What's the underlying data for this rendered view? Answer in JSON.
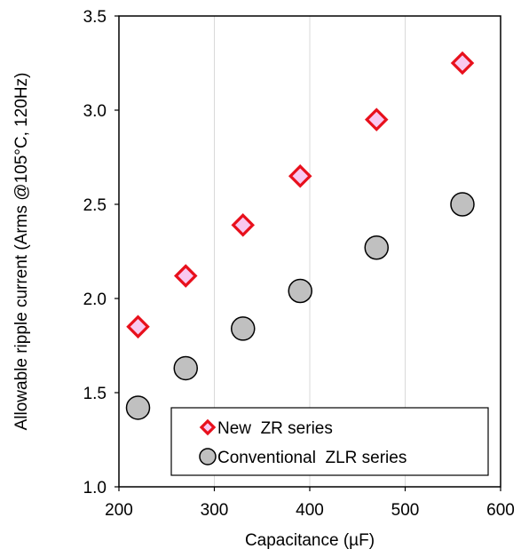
{
  "chart_data": {
    "type": "scatter",
    "xlabel": "Capacitance (µF)",
    "ylabel": "Allowable ripple current (Arms @105°C, 120Hz)",
    "xlim": [
      200,
      600
    ],
    "ylim": [
      1.0,
      3.5
    ],
    "x_ticks": [
      "200",
      "300",
      "400",
      "500",
      "600"
    ],
    "y_ticks": [
      "1.0",
      "1.5",
      "2.0",
      "2.5",
      "3.0",
      "3.5"
    ],
    "grid": "vertical",
    "legend_position": "bottom-right",
    "series": [
      {
        "name": "New  ZR series",
        "marker": "diamond",
        "color": "#e8101c",
        "fill": "#f9c8f0",
        "points": [
          {
            "x": 220,
            "y": 1.85
          },
          {
            "x": 270,
            "y": 2.12
          },
          {
            "x": 330,
            "y": 2.39
          },
          {
            "x": 390,
            "y": 2.65
          },
          {
            "x": 470,
            "y": 2.95
          },
          {
            "x": 560,
            "y": 3.25
          }
        ]
      },
      {
        "name": "Conventional  ZLR series",
        "marker": "circle",
        "color": "#000000",
        "fill": "#c0c0c0",
        "points": [
          {
            "x": 220,
            "y": 1.42
          },
          {
            "x": 270,
            "y": 1.63
          },
          {
            "x": 330,
            "y": 1.84
          },
          {
            "x": 390,
            "y": 2.04
          },
          {
            "x": 470,
            "y": 2.27
          },
          {
            "x": 560,
            "y": 2.5
          }
        ]
      }
    ]
  }
}
